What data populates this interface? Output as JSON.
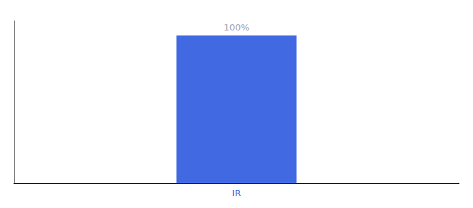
{
  "chart_data": {
    "type": "bar",
    "categories": [
      "IR"
    ],
    "values": [
      100
    ],
    "value_labels": [
      "100%"
    ],
    "data_labels": true,
    "color": "#4169e1",
    "ylim": [
      0,
      110
    ],
    "tick_labels": "x",
    "grid": false
  }
}
